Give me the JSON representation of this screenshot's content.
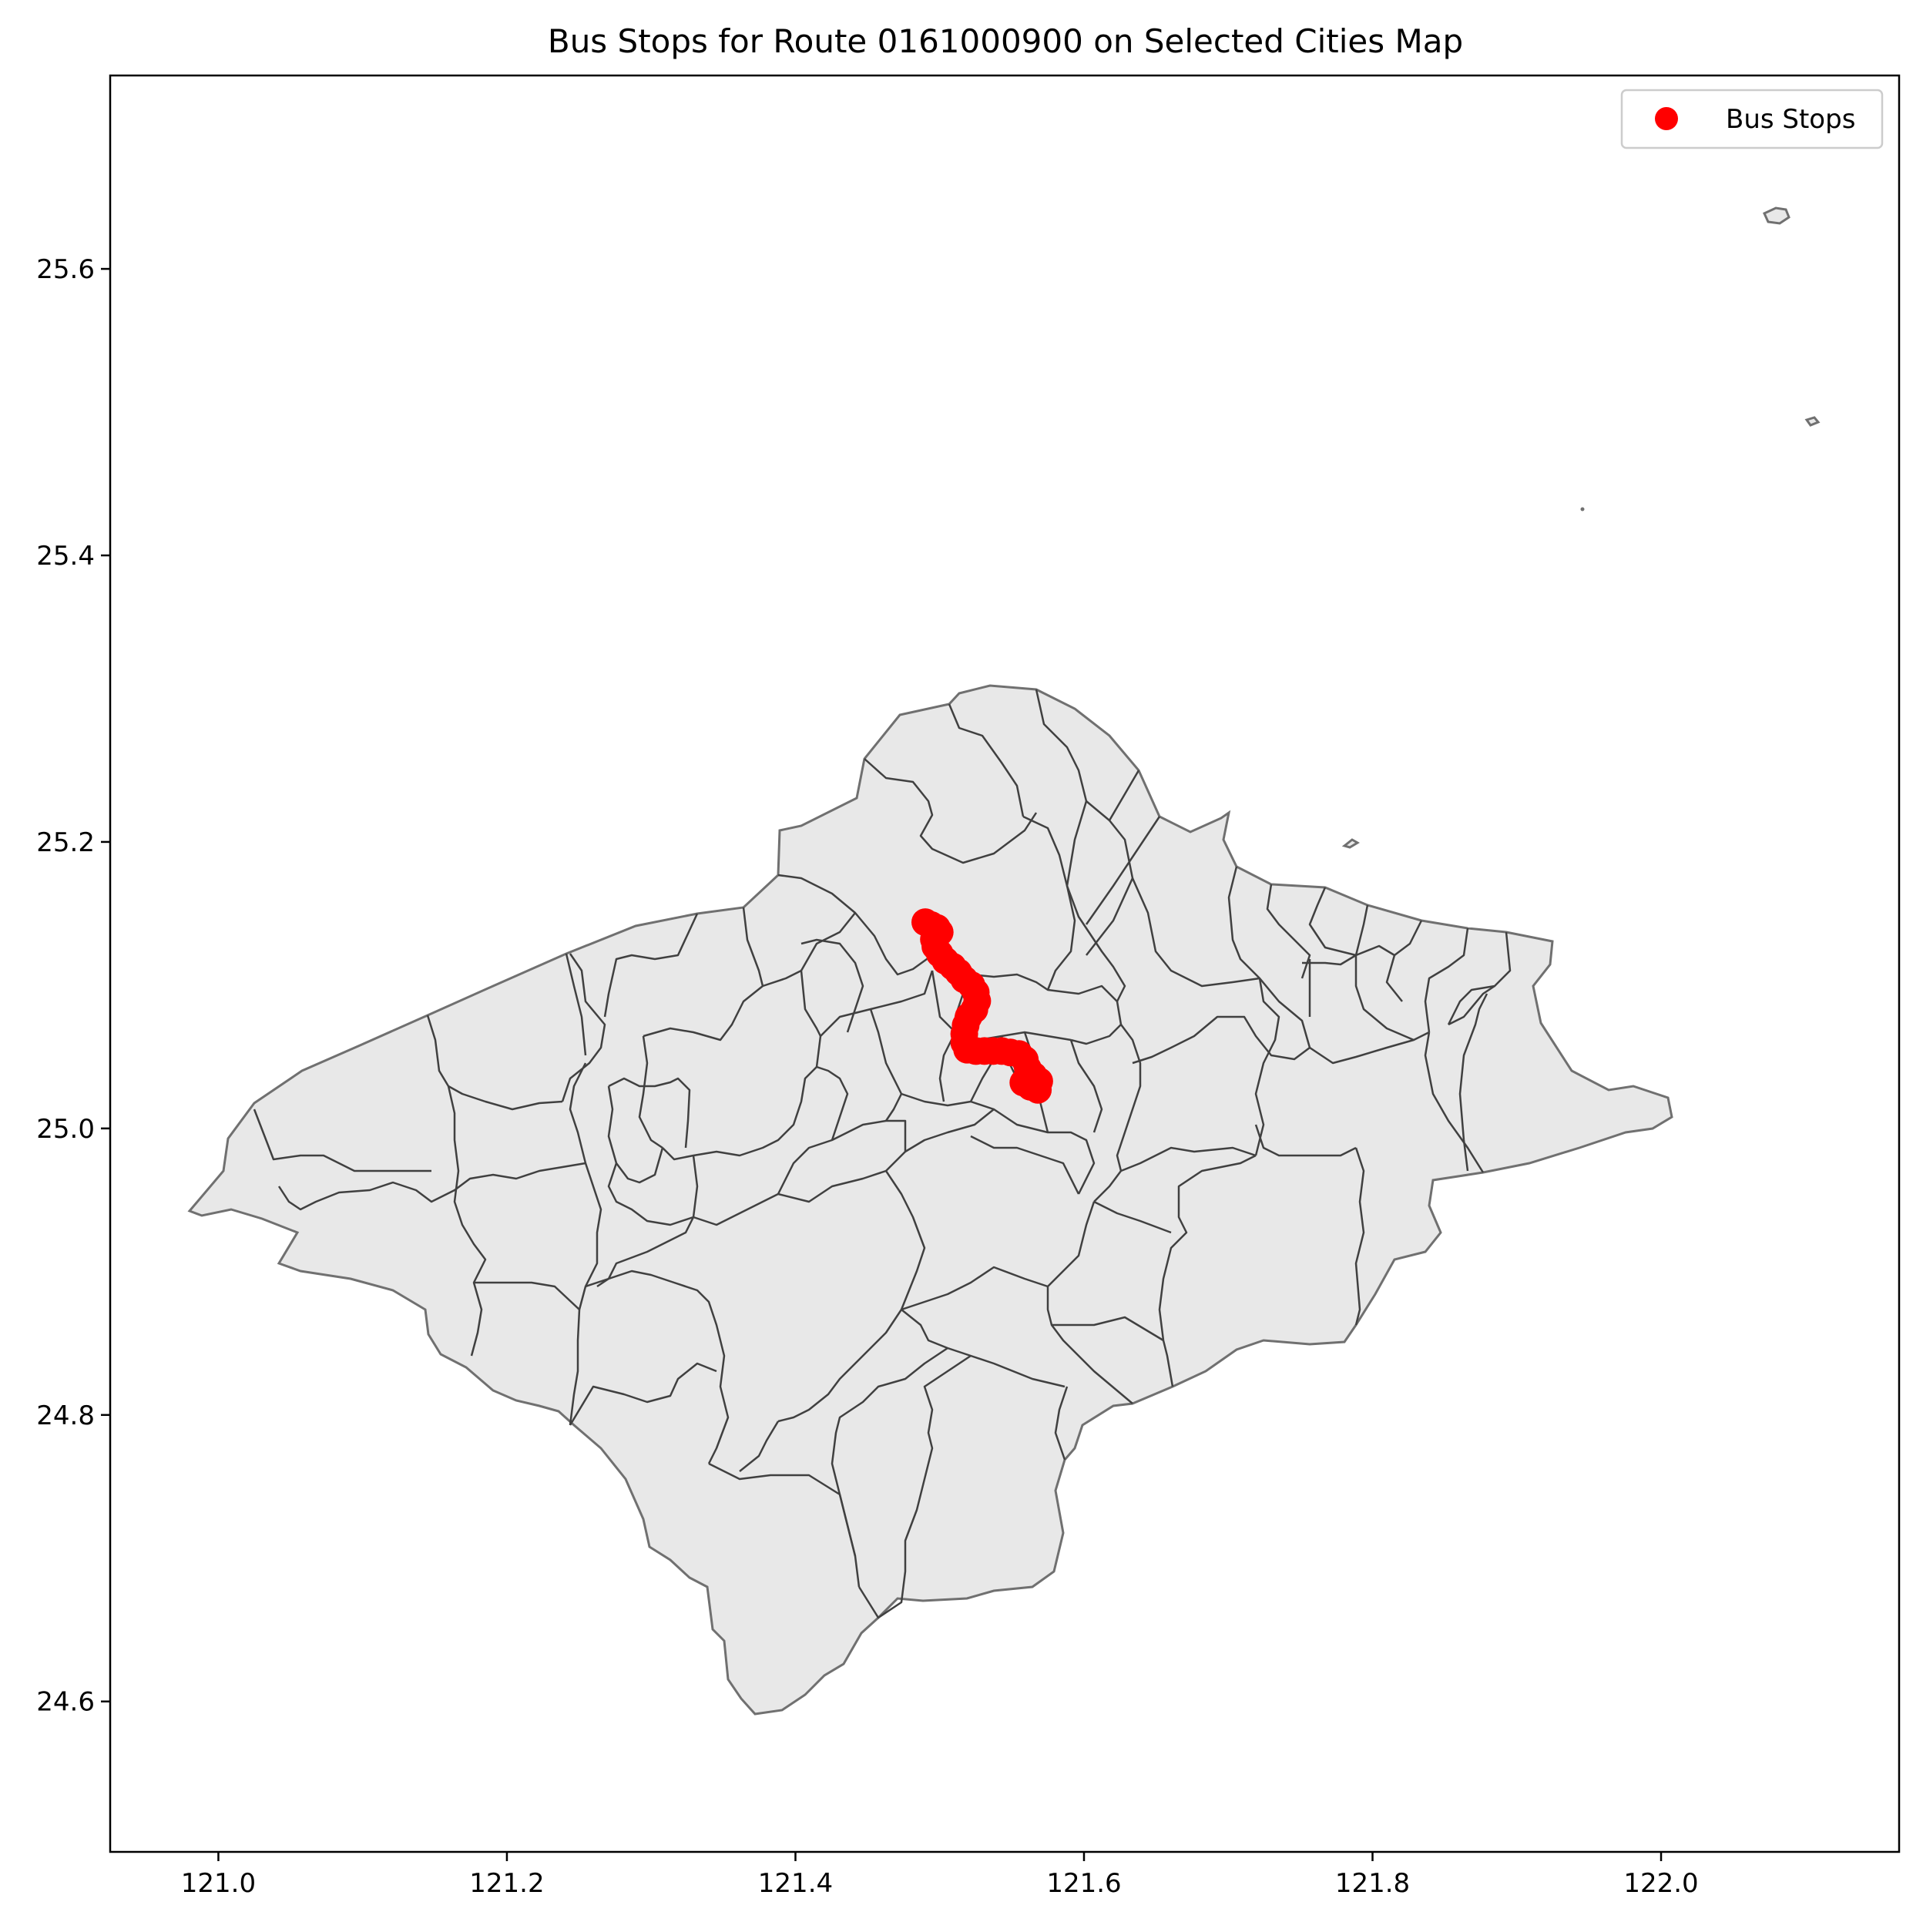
{
  "chart_data": {
    "type": "scatter",
    "title": "Bus Stops for Route 0161000900 on Selected Cities Map",
    "xlabel": "",
    "ylabel": "",
    "xlim": [
      120.925,
      122.165
    ],
    "ylim": [
      24.495,
      25.735
    ],
    "x_ticks": [
      121.0,
      121.2,
      121.4,
      121.6,
      121.8,
      122.0
    ],
    "x_tick_labels": [
      "121.0",
      "121.2",
      "121.4",
      "121.6",
      "121.8",
      "122.0"
    ],
    "y_ticks": [
      24.6,
      24.8,
      25.0,
      25.2,
      25.4,
      25.6
    ],
    "y_tick_labels": [
      "24.6",
      "24.8",
      "25.0",
      "25.2",
      "25.4",
      "25.6"
    ],
    "grid": false,
    "legend_position": "top-right",
    "series": [
      {
        "name": "Bus Stops",
        "color": "#ff0000",
        "points": [
          {
            "x": 121.49,
            "y": 25.144
          },
          {
            "x": 121.494,
            "y": 25.142
          },
          {
            "x": 121.498,
            "y": 25.14
          },
          {
            "x": 121.5,
            "y": 25.137
          },
          {
            "x": 121.496,
            "y": 25.132
          },
          {
            "x": 121.497,
            "y": 25.127
          },
          {
            "x": 121.5,
            "y": 25.122
          },
          {
            "x": 121.504,
            "y": 25.117
          },
          {
            "x": 121.509,
            "y": 25.113
          },
          {
            "x": 121.513,
            "y": 25.109
          },
          {
            "x": 121.517,
            "y": 25.104
          },
          {
            "x": 121.522,
            "y": 25.1
          },
          {
            "x": 121.525,
            "y": 25.095
          },
          {
            "x": 121.526,
            "y": 25.089
          },
          {
            "x": 121.524,
            "y": 25.083
          },
          {
            "x": 121.52,
            "y": 25.078
          },
          {
            "x": 121.518,
            "y": 25.072
          },
          {
            "x": 121.517,
            "y": 25.066
          },
          {
            "x": 121.517,
            "y": 25.06
          },
          {
            "x": 121.519,
            "y": 25.055
          },
          {
            "x": 121.525,
            "y": 25.054
          },
          {
            "x": 121.531,
            "y": 25.054
          },
          {
            "x": 121.537,
            "y": 25.054
          },
          {
            "x": 121.543,
            "y": 25.054
          },
          {
            "x": 121.549,
            "y": 25.053
          },
          {
            "x": 121.555,
            "y": 25.052
          },
          {
            "x": 121.559,
            "y": 25.048
          },
          {
            "x": 121.561,
            "y": 25.042
          },
          {
            "x": 121.565,
            "y": 25.037
          },
          {
            "x": 121.569,
            "y": 25.033
          },
          {
            "x": 121.568,
            "y": 25.027
          },
          {
            "x": 121.563,
            "y": 25.029
          },
          {
            "x": 121.558,
            "y": 25.032
          }
        ]
      }
    ],
    "map": {
      "fill_color": "#e8e8e8",
      "outline_color": "#707070",
      "boundary_color": "#404040"
    }
  }
}
